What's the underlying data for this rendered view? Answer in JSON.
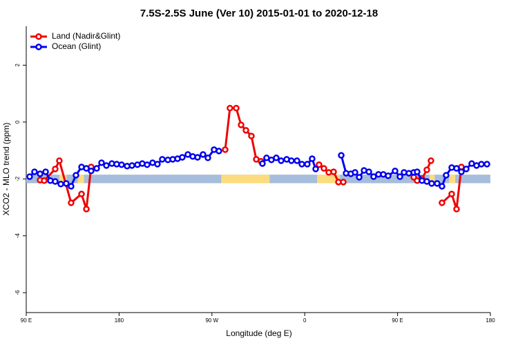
{
  "chart_data": {
    "type": "line",
    "title": "7.5S-2.5S June (Ver 10)   2015-01-01 to 2020-12-18",
    "x_label": "Longitude (deg E)",
    "y_label": "XCO2 - MLO trend (ppm)",
    "xlim": [
      90,
      540
    ],
    "xticks": [
      {
        "value": 90,
        "label": "90 E"
      },
      {
        "value": 180,
        "label": "180"
      },
      {
        "value": 270,
        "label": "90 W"
      },
      {
        "value": 360,
        "label": "0"
      },
      {
        "value": 450,
        "label": "90 E"
      },
      {
        "value": 540,
        "label": "180"
      }
    ],
    "ylim": [
      -6.7,
      3.37
    ],
    "yticks": [
      -6,
      -4,
      -2,
      0,
      2
    ],
    "legend": "top-left",
    "surface_band": {
      "y": -2,
      "height": 0.3,
      "color": "#a6bddb",
      "land_color": "#fddc7f",
      "land_ranges": [
        [
          122,
          129
        ],
        [
          140,
          146
        ],
        [
          279,
          326
        ],
        [
          372,
          394
        ],
        [
          481,
          486
        ],
        [
          500,
          506
        ]
      ]
    },
    "series": [
      {
        "name": "Land (Nadir&Glint)",
        "color": "#ee0000",
        "x": [
          103.4,
          107.4,
          118.1,
          122.1,
          133.5,
          143.6,
          148.3,
          152.9,
          null,
          282.9,
          287.5,
          293.6,
          298.3,
          303.0,
          308.3,
          313.0,
          317.7,
          null,
          373.9,
          378.6,
          383.3,
          388.0,
          392.7,
          397.4,
          null,
          465.7,
          469.0,
          473.7,
          478.4,
          482.4,
          null,
          493.1,
          502.5,
          507.2,
          511.9
        ],
        "values": [
          -2.04,
          -2.06,
          -1.65,
          -1.36,
          -2.84,
          -2.53,
          -3.06,
          -1.58,
          null,
          -0.97,
          0.49,
          0.49,
          -0.1,
          -0.29,
          -0.49,
          -1.31,
          -1.38,
          null,
          -1.5,
          -1.63,
          -1.77,
          -1.75,
          -2.11,
          -2.11,
          null,
          -1.94,
          -2.06,
          -1.99,
          -1.68,
          -1.36,
          null,
          -2.84,
          -2.53,
          -3.06,
          -1.58
        ]
      },
      {
        "name": "Ocean (Glint)",
        "color": "#0000ee",
        "x": [
          93.3,
          98.0,
          103.4,
          108.8,
          113.4,
          118.1,
          123.5,
          128.8,
          133.5,
          138.2,
          143.6,
          148.3,
          152.9,
          158.3,
          163.0,
          167.7,
          173.0,
          177.7,
          182.4,
          187.8,
          192.5,
          197.8,
          202.5,
          207.2,
          212.5,
          217.2,
          221.9,
          227.3,
          232.0,
          236.7,
          241.3,
          246.7,
          251.4,
          256.1,
          261.4,
          266.1,
          272.1,
          276.8,
          null,
          319.0,
          323.0,
          327.7,
          332.4,
          337.1,
          342.5,
          347.1,
          352.5,
          357.2,
          362.5,
          367.2,
          370.6,
          null,
          395.4,
          400.1,
          404.7,
          408.8,
          412.8,
          417.5,
          422.2,
          426.8,
          431.5,
          436.2,
          440.9,
          447.6,
          452.3,
          456.3,
          461.0,
          465.7,
          469.0,
          473.7,
          478.4,
          483.1,
          488.4,
          493.1,
          497.1,
          502.5,
          507.2,
          511.9,
          516.6,
          521.9,
          526.6,
          531.3,
          536.7
        ],
        "values": [
          -1.92,
          -1.75,
          -1.82,
          -1.75,
          -2.06,
          -2.09,
          -2.18,
          -2.16,
          -2.26,
          -1.87,
          -1.58,
          -1.63,
          -1.72,
          -1.63,
          -1.43,
          -1.53,
          -1.46,
          -1.48,
          -1.5,
          -1.55,
          -1.53,
          -1.5,
          -1.46,
          -1.5,
          -1.43,
          -1.48,
          -1.31,
          -1.33,
          -1.31,
          -1.29,
          -1.24,
          -1.14,
          -1.21,
          -1.24,
          -1.14,
          -1.26,
          -0.97,
          -1.02,
          null,
          -1.46,
          -1.26,
          -1.33,
          -1.26,
          -1.36,
          -1.31,
          -1.36,
          -1.36,
          -1.48,
          -1.48,
          -1.29,
          -1.65,
          null,
          -1.17,
          -1.8,
          -1.82,
          -1.77,
          -1.94,
          -1.7,
          -1.75,
          -1.92,
          -1.84,
          -1.84,
          -1.89,
          -1.72,
          -1.92,
          -1.77,
          -1.8,
          -1.77,
          -1.75,
          -2.06,
          -2.09,
          -2.16,
          -2.16,
          -2.26,
          -1.87,
          -1.6,
          -1.63,
          -1.75,
          -1.65,
          -1.46,
          -1.53,
          -1.48,
          -1.48
        ]
      }
    ]
  }
}
